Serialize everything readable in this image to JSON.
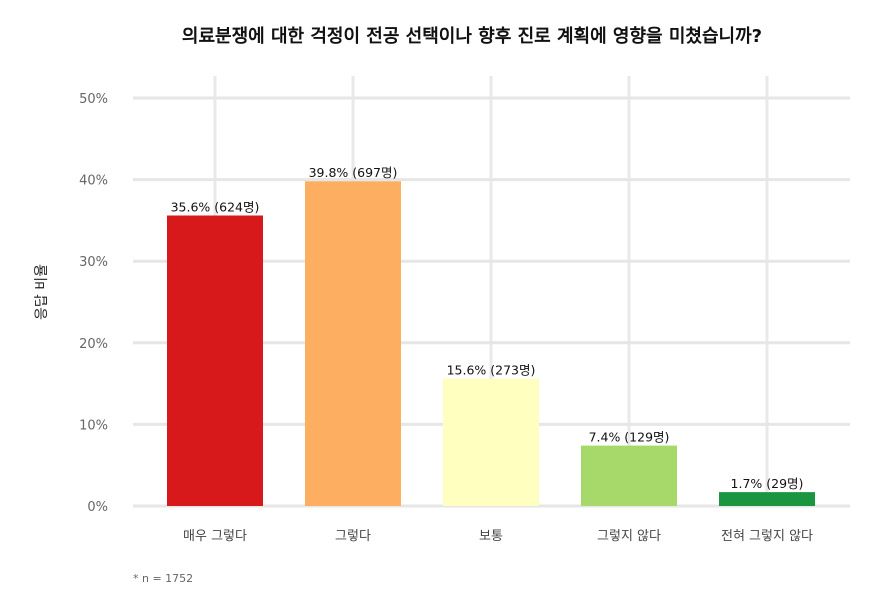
{
  "chart_data": {
    "type": "bar",
    "title": "의료분쟁에 대한 걱정이 전공 선택이나 향후 진로 계획에 영향을 미쳤습니까?",
    "ylabel": "응답 비율",
    "xlabel": "",
    "ylim": [
      0,
      50
    ],
    "yticks": [
      0,
      10,
      20,
      30,
      40,
      50
    ],
    "ytick_labels": [
      "0%",
      "10%",
      "20%",
      "30%",
      "40%",
      "50%"
    ],
    "grid": true,
    "legend": "none",
    "categories": [
      "매우 그렇다",
      "그렇다",
      "보통",
      "그렇지 않다",
      "전혀 그렇지 않다"
    ],
    "values": [
      35.6,
      39.8,
      15.6,
      7.4,
      1.7
    ],
    "data_labels": [
      "35.6% (624명)",
      "39.8% (697명)",
      "15.6% (273명)",
      "7.4% (129명)",
      "1.7% (29명)"
    ],
    "colors": [
      "#d7191c",
      "#fdae61",
      "#ffffbf",
      "#a6d96a",
      "#1a9641"
    ],
    "note": "* n = 1752"
  }
}
